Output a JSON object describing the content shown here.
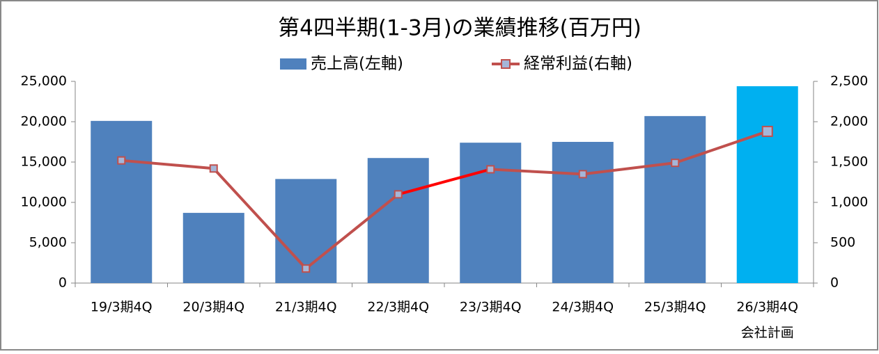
{
  "chart_data": {
    "type": "bar_line",
    "title": "第4四半期(1-3月)の業績推移(百万円)",
    "categories": [
      "19/3期4Q",
      "20/3期4Q",
      "21/3期4Q",
      "22/3期4Q",
      "23/3期4Q",
      "24/3期4Q",
      "25/3期4Q",
      "26/3期4Q"
    ],
    "categories_line2": [
      null,
      null,
      null,
      null,
      null,
      null,
      null,
      "会社計画"
    ],
    "series": [
      {
        "name": "売上高(左軸)",
        "type": "bar",
        "color": "#4f81bd",
        "colors": [
          "#4f81bd",
          "#4f81bd",
          "#4f81bd",
          "#4f81bd",
          "#4f81bd",
          "#4f81bd",
          "#4f81bd",
          "#00b0f0"
        ],
        "values": [
          20100,
          8700,
          12900,
          15500,
          17400,
          17500,
          20700,
          24400
        ]
      },
      {
        "name": "経常利益(右軸)",
        "type": "line",
        "axis": "y2",
        "color": "#c0504d",
        "marker_color": "#a5b6d8",
        "segment_colors": [
          "#c0504d",
          "#c0504d",
          "#c0504d",
          "#ff0000",
          "#c0504d",
          "#c0504d",
          "#c0504d"
        ],
        "values": [
          1520,
          1420,
          180,
          1100,
          1410,
          1350,
          1490,
          1880
        ]
      }
    ],
    "ylim": [
      0,
      25000
    ],
    "yticks": [
      0,
      {
        "value": 5000,
        "label": "5,000"
      },
      {
        "value": 10000,
        "label": "10,000"
      },
      {
        "value": 15000,
        "label": "15,000"
      },
      {
        "value": 20000,
        "label": "20,000"
      },
      {
        "value": 25000,
        "label": "25,000"
      }
    ],
    "y2lim": [
      0,
      2500
    ],
    "y2ticks": [
      0,
      500,
      {
        "value": 1000,
        "label": "1,000"
      },
      {
        "value": 1500,
        "label": "1,500"
      },
      {
        "value": 2000,
        "label": "2,000"
      },
      {
        "value": 2500,
        "label": "2,500"
      }
    ],
    "legend": "top"
  }
}
